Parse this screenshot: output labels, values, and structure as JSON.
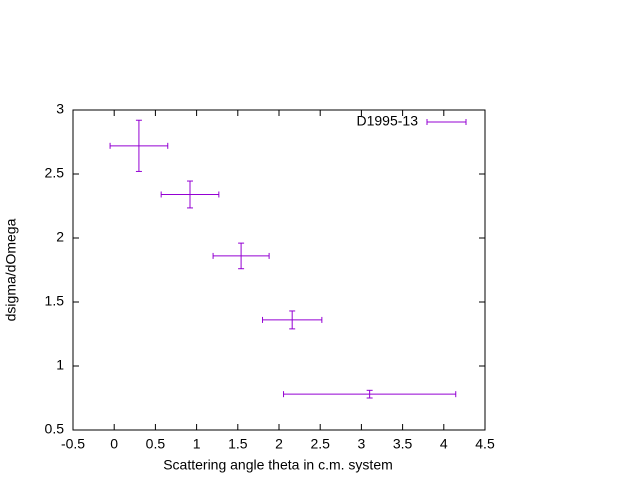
{
  "chart_data": {
    "type": "errorbar",
    "xlabel": "Scattering angle theta in c.m. system",
    "ylabel": "dsigma/dOmega",
    "xlim": [
      -0.5,
      4.5
    ],
    "ylim": [
      0.5,
      3
    ],
    "xticks": [
      -0.5,
      0,
      0.5,
      1,
      1.5,
      2,
      2.5,
      3,
      3.5,
      4,
      4.5
    ],
    "yticks": [
      0.5,
      1,
      1.5,
      2,
      2.5,
      3
    ],
    "legend": "top-right",
    "grid": false,
    "series": [
      {
        "name": "D1995-13",
        "color": "#9400d3",
        "x": [
          0.3,
          0.92,
          1.54,
          2.16,
          3.1
        ],
        "values": [
          2.72,
          2.34,
          1.86,
          1.36,
          0.78
        ],
        "xerr": [
          0.35,
          0.35,
          0.34,
          0.36,
          1.045
        ],
        "yerr": [
          0.2,
          0.105,
          0.1,
          0.07,
          0.03
        ]
      }
    ]
  }
}
